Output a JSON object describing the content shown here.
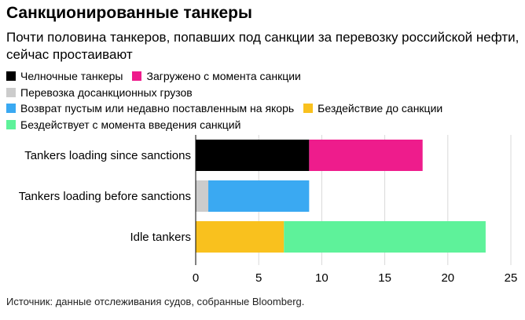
{
  "title": "Санкционированные танкеры",
  "subtitle": "Почти половина танкеров, попавших под санкции за перевозку российской нефти, сейчас простаивают",
  "legend": [
    {
      "label": "Челночные танкеры",
      "color": "#000000"
    },
    {
      "label": "Загружено с момента санкции",
      "color": "#ee1c8c"
    },
    {
      "label": "Перевозка досанкционных грузов",
      "color": "#cccccc"
    },
    {
      "label": "Возврат пустым или недавно поставленным на якорь",
      "color": "#3aa9f2"
    },
    {
      "label": "Бездействие до санкции",
      "color": "#f9c11e"
    },
    {
      "label": "Бездействует с момента введения санкций",
      "color": "#5ef29a"
    }
  ],
  "source": "Источник: данные отслеживания судов, собранные Bloomberg.",
  "chart_data": {
    "type": "bar",
    "orientation": "horizontal",
    "stacked": true,
    "categories": [
      "Tankers loading since sanctions",
      "Tankers loading before sanctions",
      "Idle tankers"
    ],
    "bars": [
      {
        "category": "Tankers loading since sanctions",
        "segments": [
          {
            "label": "Челночные танкеры",
            "value": 9,
            "color": "#000000"
          },
          {
            "label": "Загружено с момента санкции",
            "value": 9,
            "color": "#ee1c8c"
          }
        ]
      },
      {
        "category": "Tankers loading before sanctions",
        "segments": [
          {
            "label": "Перевозка досанкционных грузов",
            "value": 1,
            "color": "#cccccc"
          },
          {
            "label": "Возврат пустым или недавно поставленным на якорь",
            "value": 8,
            "color": "#3aa9f2"
          }
        ]
      },
      {
        "category": "Idle tankers",
        "segments": [
          {
            "label": "Бездействие до санкции",
            "value": 7,
            "color": "#f9c11e"
          },
          {
            "label": "Бездействует с момента введения санкций",
            "value": 16,
            "color": "#5ef29a"
          }
        ]
      }
    ],
    "xlim": [
      0,
      25
    ],
    "xticks": [
      0,
      5,
      10,
      15,
      20,
      25
    ],
    "grid": true,
    "legend_position": "top"
  }
}
